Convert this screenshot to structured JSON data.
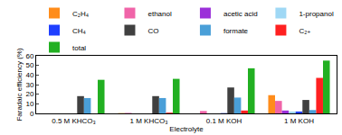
{
  "chart_data": {
    "type": "bar",
    "x_label": "Electrolyte",
    "y_label": "Faradaic efficiency (%)",
    "categories": [
      "0.5 M KHCO₃",
      "1 M KHCO₃",
      "0.1 M KOH",
      "1 M KOH"
    ],
    "series": [
      {
        "name": "C₂H₄",
        "color": "#ff8c1a",
        "values": [
          0,
          0.3,
          0,
          19
        ]
      },
      {
        "name": "ethanol",
        "color": "#f064a8",
        "values": [
          0,
          0.5,
          2.5,
          13
        ]
      },
      {
        "name": "acetic acid",
        "color": "#9b30d9",
        "values": [
          0,
          0,
          0,
          3
        ]
      },
      {
        "name": "1-propanol",
        "color": "#9fd8f5",
        "values": [
          0,
          0,
          0,
          2
        ]
      },
      {
        "name": "CH₄",
        "color": "#1f3fff",
        "values": [
          0,
          0,
          0.3,
          2
        ]
      },
      {
        "name": "CO",
        "color": "#404040",
        "values": [
          18,
          18,
          27,
          14
        ]
      },
      {
        "name": "formate",
        "color": "#4a9fd8",
        "values": [
          16,
          16,
          16.5,
          3.5
        ]
      },
      {
        "name": "C₂₊",
        "color": "#ff2020",
        "values": [
          0,
          0.8,
          3,
          37
        ]
      },
      {
        "name": "total",
        "color": "#22b022",
        "values": [
          35,
          36,
          47,
          55
        ]
      }
    ],
    "ylim": [
      0,
      60
    ],
    "yticks": [
      0,
      10,
      20,
      30,
      40,
      50,
      60
    ],
    "grid": false,
    "legend": "top"
  }
}
